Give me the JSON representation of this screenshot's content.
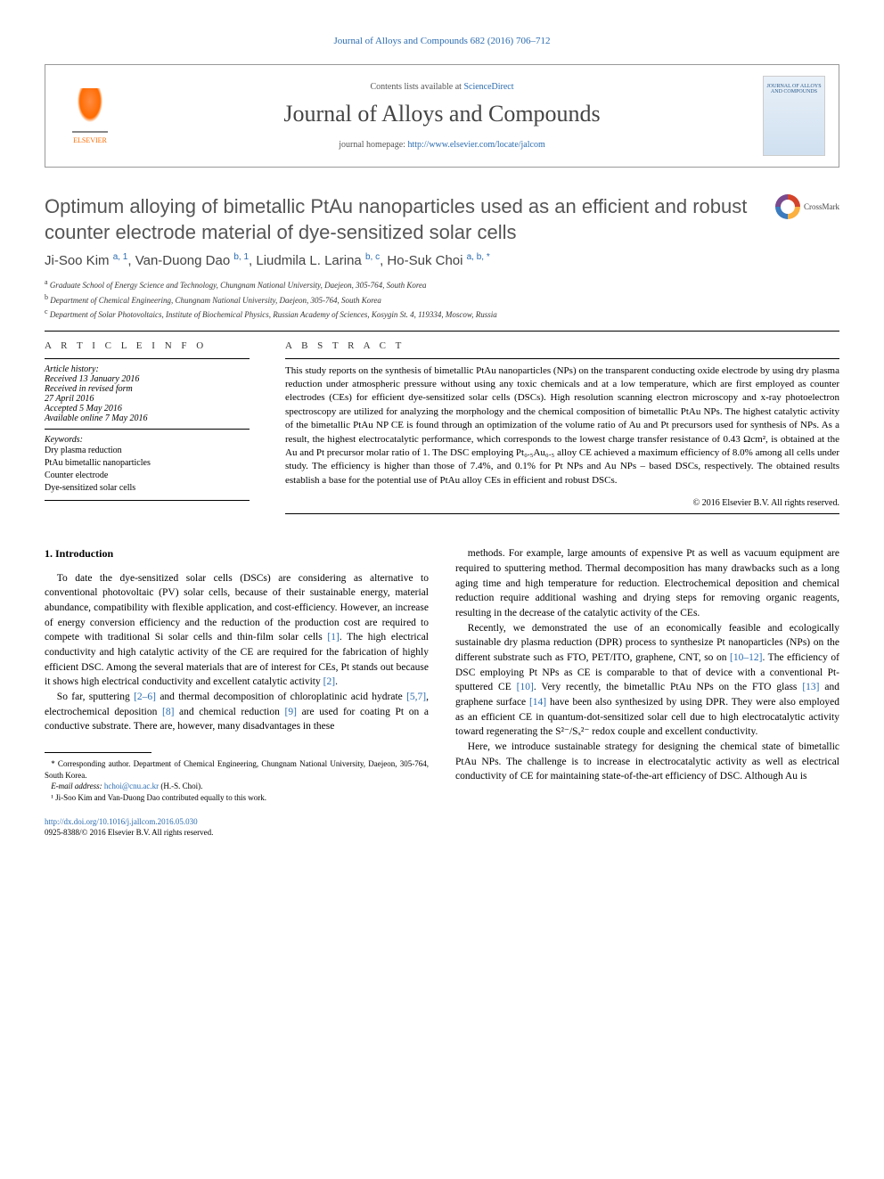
{
  "journal_ref": "Journal of Alloys and Compounds 682 (2016) 706–712",
  "header": {
    "elsevier": "ELSEVIER",
    "contents_prefix": "Contents lists available at ",
    "contents_link": "ScienceDirect",
    "journal_name": "Journal of Alloys and Compounds",
    "homepage_prefix": "journal homepage: ",
    "homepage_link": "http://www.elsevier.com/locate/jalcom",
    "cover_text": "JOURNAL OF ALLOYS AND COMPOUNDS"
  },
  "title": "Optimum alloying of bimetallic PtAu nanoparticles used as an efficient and robust counter electrode material of dye-sensitized solar cells",
  "crossmark": "CrossMark",
  "authors": {
    "a1_name": "Ji-Soo Kim ",
    "a1_aff": "a, 1",
    "sep1": ", ",
    "a2_name": "Van-Duong Dao ",
    "a2_aff": "b, 1",
    "sep2": ", ",
    "a3_name": "Liudmila L. Larina ",
    "a3_aff": "b, c",
    "sep3": ", ",
    "a4_name": "Ho-Suk Choi ",
    "a4_aff": "a, b, ",
    "a4_ast": "*"
  },
  "affiliations": {
    "a": "Graduate School of Energy Science and Technology, Chungnam National University, Daejeon, 305-764, South Korea",
    "b": "Department of Chemical Engineering, Chungnam National University, Daejeon, 305-764, South Korea",
    "c": "Department of Solar Photovoltaics, Institute of Biochemical Physics, Russian Academy of Sciences, Kosygin St. 4, 119334, Moscow, Russia"
  },
  "info": {
    "head": "A R T I C L E  I N F O",
    "history_label": "Article history:",
    "received": "Received 13 January 2016",
    "revised1": "Received in revised form",
    "revised2": "27 April 2016",
    "accepted": "Accepted 5 May 2016",
    "online": "Available online 7 May 2016",
    "keywords_label": "Keywords:",
    "kw1": "Dry plasma reduction",
    "kw2": "PtAu bimetallic nanoparticles",
    "kw3": "Counter electrode",
    "kw4": "Dye-sensitized solar cells"
  },
  "abstract": {
    "head": "A B S T R A C T",
    "text": "This study reports on the synthesis of bimetallic PtAu nanoparticles (NPs) on the transparent conducting oxide electrode by using dry plasma reduction under atmospheric pressure without using any toxic chemicals and at a low temperature, which are first employed as counter electrodes (CEs) for efficient dye-sensitized solar cells (DSCs). High resolution scanning electron microscopy and x-ray photoelectron spectroscopy are utilized for analyzing the morphology and the chemical composition of bimetallic PtAu NPs. The highest catalytic activity of the bimetallic PtAu NP CE is found through an optimization of the volume ratio of Au and Pt precursors used for synthesis of NPs. As a result, the highest electrocatalytic performance, which corresponds to the lowest charge transfer resistance of 0.43 Ωcm², is obtained at the Au and Pt precursor molar ratio of 1. The DSC employing Pt₀.₅Au₀.₅ alloy CE achieved a maximum efficiency of 8.0% among all cells under study. The efficiency is higher than those of 7.4%, and 0.1% for Pt NPs and Au NPs – based DSCs, respectively. The obtained results establish a base for the potential use of PtAu alloy CEs in efficient and robust DSCs.",
    "copyright": "© 2016 Elsevier B.V. All rights reserved."
  },
  "body": {
    "sec1_head": "1. Introduction",
    "p1a": "To date the dye-sensitized solar cells (DSCs) are considering as alternative to conventional photovoltaic (PV) solar cells, because of their sustainable energy, material abundance, compatibility with flexible application, and cost-efficiency. However, an increase of energy conversion efficiency and the reduction of the production cost are required to compete with traditional Si solar cells and thin-film solar cells ",
    "r1": "[1]",
    "p1b": ". The high electrical conductivity and high catalytic activity of the CE are required for the fabrication of highly efficient DSC. Among the several materials that are of interest for CEs, Pt stands out because it shows high electrical conductivity and excellent catalytic activity ",
    "r2": "[2]",
    "p1c": ".",
    "p2a": "So far, sputtering ",
    "r26": "[2–6]",
    "p2b": " and thermal decomposition of chloroplatinic acid hydrate ",
    "r57": "[5,7]",
    "p2c": ", electrochemical deposition ",
    "r8": "[8]",
    "p2d": " and chemical reduction ",
    "r9": "[9]",
    "p2e": " are used for coating Pt on a conductive substrate. There are, however, many disadvantages in these",
    "p3": "methods. For example, large amounts of expensive Pt as well as vacuum equipment are required to sputtering method. Thermal decomposition has many drawbacks such as a long aging time and high temperature for reduction. Electrochemical deposition and chemical reduction require additional washing and drying steps for removing organic reagents, resulting in the decrease of the catalytic activity of the CEs.",
    "p4a": "Recently, we demonstrated the use of an economically feasible and ecologically sustainable dry plasma reduction (DPR) process to synthesize Pt nanoparticles (NPs) on the different substrate such as FTO, PET/ITO, graphene, CNT, so on ",
    "r1012": "[10–12]",
    "p4b": ". The efficiency of DSC employing Pt NPs as CE is comparable to that of device with a conventional Pt-sputtered CE ",
    "r10": "[10]",
    "p4c": ". Very recently, the bimetallic PtAu NPs on the FTO glass ",
    "r13": "[13]",
    "p4d": " and graphene surface ",
    "r14": "[14]",
    "p4e": " have been also synthesized by using DPR. They were also employed as an efficient CE in quantum-dot-sensitized solar cell due to high electrocatalytic activity toward regenerating the S²⁻/Sₓ²⁻ redox couple and excellent conductivity.",
    "p5": "Here, we introduce sustainable strategy for designing the chemical state of bimetallic PtAu NPs. The challenge is to increase in electrocatalytic activity as well as electrical conductivity of CE for maintaining state-of-the-art efficiency of DSC. Although Au is"
  },
  "footnotes": {
    "corr": "* Corresponding author. Department of Chemical Engineering, Chungnam National University, Daejeon, 305-764, South Korea.",
    "email_label": "E-mail address: ",
    "email": "hchoi@cnu.ac.kr",
    "email_suffix": " (H.-S. Choi).",
    "note1": "¹ Ji-Soo Kim and Van-Duong Dao contributed equally to this work."
  },
  "doi": {
    "link": "http://dx.doi.org/10.1016/j.jallcom.2016.05.030",
    "issn": "0925-8388/© 2016 Elsevier B.V. All rights reserved."
  },
  "colors": {
    "link": "#2b6cb0",
    "title_gray": "#555555",
    "orange": "#ff6b00"
  }
}
